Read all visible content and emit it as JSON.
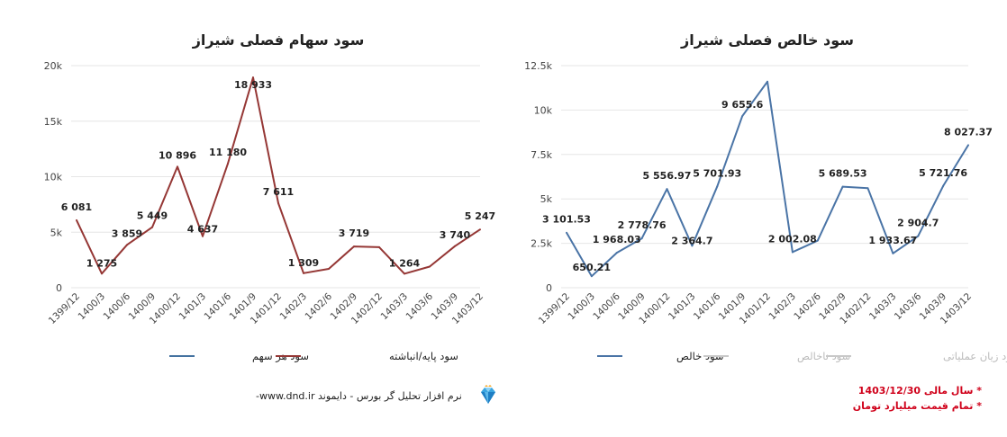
{
  "colors": {
    "left_line": "#953735",
    "left_legend_blue": "#4472a0",
    "right_line": "#4a74a6",
    "legend_gray": "#c8c8c8",
    "grid": "#e6e6e6",
    "note_red": "#d0021b"
  },
  "chart_data": [
    {
      "type": "line",
      "title": "سود سهام فصلی شیراز",
      "categories": [
        "1399/12",
        "1400/3",
        "1400/6",
        "1400/9",
        "1400/12",
        "1401/3",
        "1401/6",
        "1401/9",
        "1401/12",
        "1402/3",
        "1402/6",
        "1402/9",
        "1402/12",
        "1403/3",
        "1403/6",
        "1403/9",
        "1403/12"
      ],
      "series": [
        {
          "name": "سود پایه/انباشته",
          "values": [
            6081,
            1275,
            3859,
            5449,
            10896,
            4637,
            11180,
            18933,
            7611,
            1309,
            1700,
            3719,
            3650,
            1264,
            1900,
            3740,
            5247
          ]
        }
      ],
      "data_labels": [
        "6 081",
        "1 275",
        "3 859",
        "5 449",
        "10 896",
        "4 637",
        "11 180",
        "18 933",
        "7 611",
        "1 309",
        "",
        "3 719",
        "",
        "1 264",
        "",
        "3 740",
        "5 247"
      ],
      "y_ticks": [
        "0",
        "5k",
        "10k",
        "15k",
        "20k"
      ],
      "ylim": [
        0,
        20000
      ],
      "legend": [
        "سود پایه/انباشته",
        "سود هر سهم"
      ],
      "legend_position": "bottom",
      "grid": true
    },
    {
      "type": "line",
      "title": "سود خالص فصلی شیراز",
      "categories": [
        "1399/12",
        "1400/3",
        "1400/6",
        "1400/9",
        "1400/12",
        "1401/3",
        "1401/6",
        "1401/9",
        "1401/12",
        "1402/3",
        "1402/6",
        "1402/9",
        "1402/12",
        "1403/3",
        "1403/6",
        "1403/9",
        "1403/12"
      ],
      "series": [
        {
          "name": "سود خالص",
          "values": [
            3101.53,
            650.21,
            1968.03,
            2778.76,
            5556.97,
            2364.7,
            5701.93,
            9655.6,
            11600,
            2002.08,
            2650,
            5689.53,
            5600,
            1933.67,
            2904.7,
            5721.76,
            8027.37
          ]
        }
      ],
      "data_labels": [
        "3 101.53",
        "650.21",
        "1 968.03",
        "2 778.76",
        "5 556.97",
        "2 364.7",
        "5 701.93",
        "9 655.6",
        "",
        "2 002.08",
        "",
        "5 689.53",
        "",
        "1 933.67",
        "2 904.7",
        "5 721.76",
        "8 027.37"
      ],
      "y_ticks": [
        "0",
        "2.5k",
        "5k",
        "7.5k",
        "10k",
        "12.5k"
      ],
      "ylim": [
        0,
        12500
      ],
      "legend": [
        "سود زیان عملیاتی",
        "سود ناخالص",
        "سود خالص"
      ],
      "legend_position": "bottom",
      "grid": true
    }
  ],
  "footer": {
    "brand_text": "نرم افزار تحلیل گر بورس - دایموند",
    "brand_url": "www.dnd.ir-",
    "logo_icon": "diamond-icon",
    "notes": [
      "* سال مالی 1403/12/30",
      "* تمام قیمت میلیارد تومان"
    ]
  }
}
